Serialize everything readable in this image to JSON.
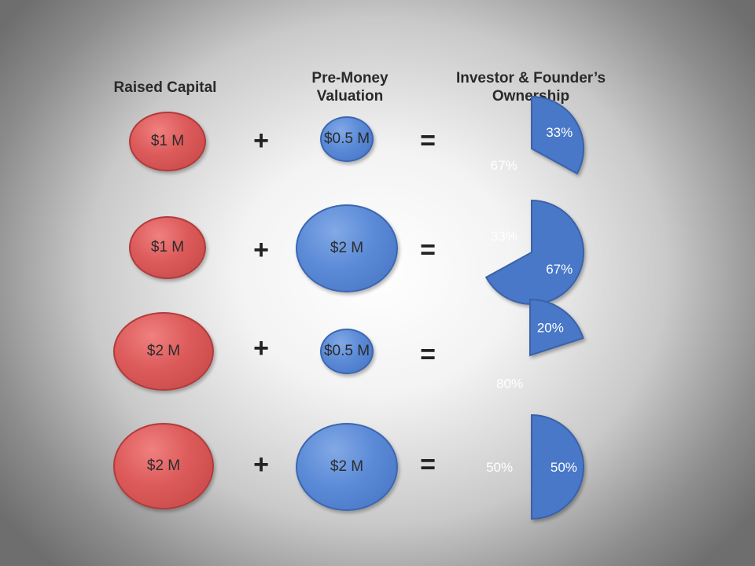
{
  "headers": {
    "raised_capital": "Raised Capital",
    "pre_money": "Pre-Money\nValuation",
    "ownership": "Investor & Founder’s\nOwnership"
  },
  "colors": {
    "founder": "#4a78c8",
    "investor": "#d24b4b"
  },
  "rows": [
    {
      "raised": "$1 M",
      "plus": "+",
      "pre_money": "$0.5 M",
      "equals": "=",
      "founder_label": "33%",
      "investor_label": "67%",
      "founder_share": 0.33
    },
    {
      "raised": "$1 M",
      "plus": "+",
      "pre_money": "$2 M",
      "equals": "=",
      "founder_label": "67%",
      "investor_label": "33%",
      "founder_share": 0.67
    },
    {
      "raised": "$2 M",
      "plus": "+",
      "pre_money": "$0.5 M",
      "equals": "=",
      "founder_label": "20%",
      "investor_label": "80%",
      "founder_share": 0.2
    },
    {
      "raised": "$2 M",
      "plus": "+",
      "pre_money": "$2 M",
      "equals": "=",
      "founder_label": "50%",
      "investor_label": "50%",
      "founder_share": 0.5
    }
  ]
}
